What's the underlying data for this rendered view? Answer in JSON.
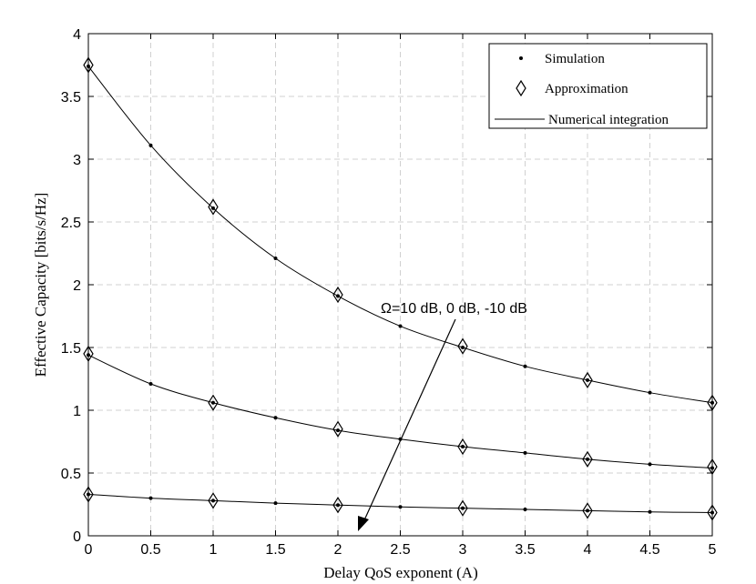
{
  "chart_data": {
    "type": "line",
    "title": "",
    "xlabel": "Delay QoS exponent (A)",
    "ylabel": "Effective Capacity [bits/s/Hz]",
    "xlim": [
      0,
      5
    ],
    "ylim": [
      0,
      4
    ],
    "x_ticks": [
      "0",
      "0.5",
      "1",
      "1.5",
      "2",
      "2.5",
      "3",
      "3.5",
      "4",
      "4.5",
      "5"
    ],
    "y_ticks": [
      "0",
      "0.5",
      "1",
      "1.5",
      "2",
      "2.5",
      "3",
      "3.5",
      "4"
    ],
    "grid": true,
    "legend_position": "top-right",
    "legend": [
      "Simulation",
      "Approximation",
      "Numerical integration"
    ],
    "annotation": "Ω=10 dB, 0 dB, -10 dB",
    "x": [
      0,
      0.5,
      1,
      1.5,
      2,
      2.5,
      3,
      3.5,
      4,
      4.5,
      5
    ],
    "approximation_x": [
      0,
      1,
      2,
      3,
      4,
      5
    ],
    "series": [
      {
        "values": [
          3.74,
          3.11,
          2.61,
          2.21,
          1.91,
          1.67,
          1.5,
          1.35,
          1.24,
          1.14,
          1.06
        ],
        "approximation": [
          3.75,
          2.62,
          1.92,
          1.51,
          1.24,
          1.06
        ]
      },
      {
        "values": [
          1.44,
          1.21,
          1.06,
          0.94,
          0.84,
          0.77,
          0.71,
          0.66,
          0.61,
          0.57,
          0.54
        ],
        "approximation": [
          1.45,
          1.06,
          0.85,
          0.71,
          0.61,
          0.55
        ]
      },
      {
        "values": [
          0.33,
          0.3,
          0.28,
          0.26,
          0.245,
          0.23,
          0.22,
          0.21,
          0.2,
          0.19,
          0.185
        ],
        "approximation": [
          0.33,
          0.28,
          0.245,
          0.22,
          0.2,
          0.185
        ]
      }
    ]
  }
}
